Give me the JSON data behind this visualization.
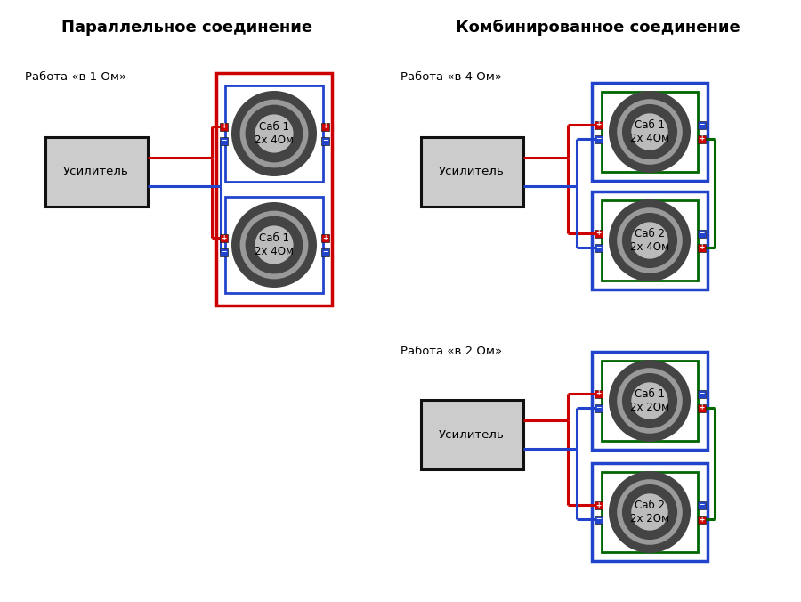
{
  "bg_color": "#ffffff",
  "title_left": "Параллельное соединение",
  "title_right": "Комбинированное соединение",
  "title_fontsize": 13,
  "amp_label": "Усилитель",
  "work_label_1": "Работа «в 1 Ом»",
  "work_label_4": "Работа «в 4 Ом»",
  "work_label_2": "Работа «в 2 Ом»",
  "sub1_label_4ohm": "Саб 1\n2х 4Ом",
  "sub2_label_4ohm": "Саб 2\n2х 4Ом",
  "sub1_label_2ohm": "Саб 1\n2х 2Ом",
  "sub2_label_2ohm": "Саб 2\n2х 2Ом",
  "red": "#cc0000",
  "blue": "#2244cc",
  "green": "#006600",
  "amp_fill": "#cccccc",
  "amp_border": "#111111",
  "spk_dark": "#444444",
  "spk_mid": "#999999",
  "spk_light": "#bbbbbb",
  "plus_color": "#cc0000",
  "minus_color": "#2244cc",
  "label_fontsize": 9.5,
  "speaker_fontsize": 8.5,
  "lw": 2.2
}
